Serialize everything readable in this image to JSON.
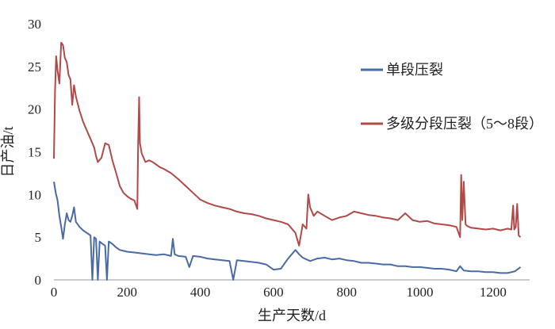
{
  "chart_data": {
    "type": "line",
    "xlabel": "生产天数/d",
    "ylabel": "日产油/t",
    "xlim": [
      0,
      1300
    ],
    "ylim": [
      0,
      30
    ],
    "x_ticks": [
      0,
      200,
      400,
      600,
      800,
      1000,
      1200
    ],
    "y_ticks": [
      0,
      5,
      10,
      15,
      20,
      25,
      30
    ],
    "grid": false,
    "legend_position": "right",
    "series": [
      {
        "name": "单段压裂",
        "color": "#4a6aa5",
        "x": [
          0,
          5,
          10,
          15,
          20,
          25,
          30,
          35,
          40,
          45,
          50,
          55,
          60,
          70,
          80,
          90,
          100,
          105,
          110,
          115,
          120,
          125,
          130,
          140,
          145,
          150,
          160,
          170,
          180,
          190,
          200,
          220,
          240,
          260,
          280,
          300,
          320,
          325,
          330,
          340,
          360,
          370,
          380,
          400,
          420,
          440,
          460,
          480,
          490,
          500,
          520,
          540,
          560,
          580,
          600,
          620,
          640,
          660,
          670,
          680,
          700,
          720,
          740,
          760,
          780,
          800,
          820,
          840,
          860,
          880,
          900,
          920,
          940,
          960,
          980,
          1000,
          1020,
          1040,
          1060,
          1080,
          1100,
          1110,
          1120,
          1140,
          1160,
          1180,
          1200,
          1220,
          1240,
          1260,
          1275
        ],
        "y": [
          11.5,
          10.2,
          9.3,
          7.5,
          6.2,
          4.8,
          6.5,
          7.8,
          7.0,
          6.8,
          7.5,
          8.5,
          6.8,
          6.2,
          5.8,
          5.5,
          5.2,
          0,
          5.0,
          4.8,
          0,
          4.5,
          4.3,
          4.0,
          0,
          4.5,
          4.2,
          3.8,
          3.5,
          3.4,
          3.3,
          3.2,
          3.1,
          3.0,
          2.9,
          3.0,
          2.8,
          4.8,
          3.0,
          2.8,
          2.7,
          1.5,
          2.8,
          2.7,
          2.5,
          2.4,
          2.3,
          2.2,
          0,
          2.3,
          2.2,
          2.1,
          2.0,
          1.8,
          1.2,
          1.3,
          2.5,
          3.5,
          3.0,
          2.6,
          2.2,
          2.5,
          2.6,
          2.4,
          2.5,
          2.3,
          2.2,
          2.0,
          2.0,
          1.9,
          1.8,
          1.8,
          1.6,
          1.6,
          1.5,
          1.5,
          1.4,
          1.3,
          1.3,
          1.2,
          1.0,
          1.6,
          1.1,
          1.0,
          1.0,
          0.9,
          0.9,
          0.8,
          0.8,
          1.0,
          1.5
        ]
      },
      {
        "name": "多级分段压裂（5～8段）",
        "color": "#b04a48",
        "x": [
          0,
          3,
          6,
          10,
          15,
          20,
          25,
          30,
          35,
          40,
          45,
          50,
          55,
          60,
          70,
          80,
          90,
          100,
          110,
          115,
          120,
          130,
          140,
          150,
          160,
          170,
          180,
          190,
          200,
          210,
          220,
          228,
          230,
          233,
          235,
          240,
          250,
          260,
          270,
          280,
          290,
          300,
          320,
          340,
          360,
          380,
          400,
          420,
          440,
          460,
          480,
          500,
          520,
          540,
          560,
          580,
          600,
          620,
          640,
          660,
          670,
          680,
          690,
          695,
          700,
          710,
          720,
          740,
          760,
          780,
          800,
          820,
          840,
          860,
          880,
          900,
          920,
          940,
          960,
          980,
          1000,
          1020,
          1040,
          1060,
          1080,
          1100,
          1110,
          1113,
          1116,
          1120,
          1125,
          1130,
          1140,
          1160,
          1180,
          1200,
          1220,
          1240,
          1250,
          1255,
          1258,
          1262,
          1266,
          1270,
          1275
        ],
        "y": [
          14.2,
          22.0,
          26.2,
          24.5,
          23.0,
          27.8,
          27.5,
          26.0,
          25.5,
          24.0,
          23.5,
          20.5,
          22.8,
          21.5,
          19.8,
          18.5,
          17.5,
          16.5,
          15.5,
          14.5,
          13.8,
          14.3,
          16.0,
          15.8,
          14.0,
          12.5,
          11.0,
          10.2,
          9.8,
          9.5,
          9.3,
          8.3,
          15.8,
          21.4,
          16.0,
          14.8,
          13.8,
          14.0,
          13.8,
          13.5,
          13.2,
          13.0,
          12.5,
          11.8,
          11.0,
          10.2,
          9.4,
          9.0,
          8.7,
          8.5,
          8.3,
          8.0,
          7.8,
          7.7,
          7.5,
          7.2,
          7.0,
          6.8,
          6.5,
          5.5,
          4.0,
          6.5,
          6.0,
          10.0,
          8.5,
          7.5,
          8.0,
          7.5,
          7.0,
          7.3,
          7.5,
          8.0,
          7.8,
          7.6,
          7.5,
          7.3,
          7.2,
          7.0,
          7.8,
          7.0,
          6.8,
          6.9,
          6.6,
          6.5,
          6.4,
          6.2,
          5.0,
          12.3,
          7.0,
          11.5,
          6.5,
          6.3,
          6.1,
          6.0,
          5.9,
          6.0,
          5.8,
          6.0,
          5.9,
          8.7,
          5.9,
          6.2,
          8.9,
          5.2,
          5.0
        ]
      }
    ]
  }
}
